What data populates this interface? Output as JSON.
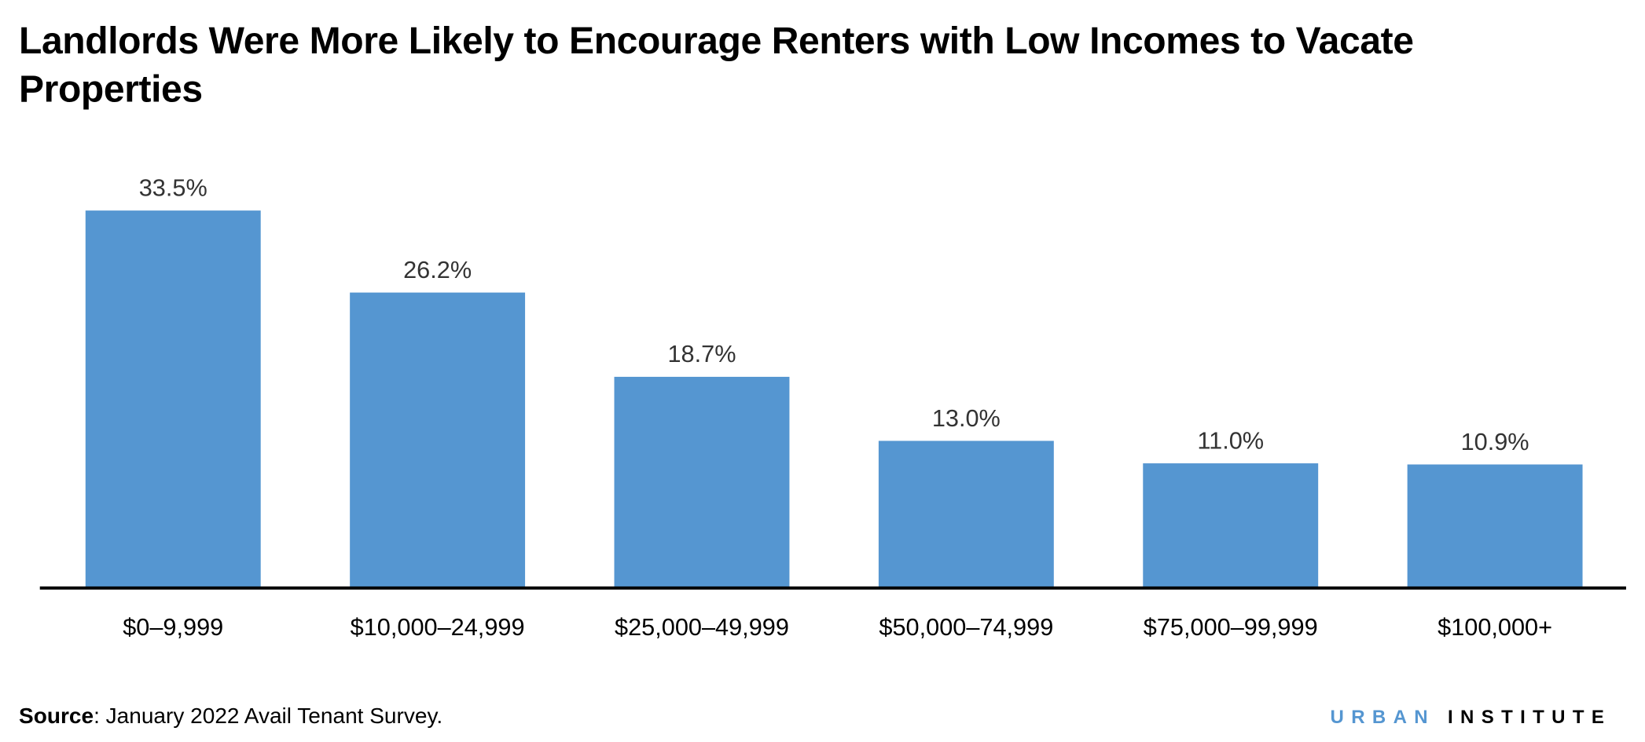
{
  "title": "Landlords Were More Likely to Encourage Renters with Low Incomes to Vacate Properties",
  "source_label": "Source",
  "source_text": ": January 2022 Avail Tenant Survey.",
  "logo": {
    "part1": "URBAN",
    "part2": "INSTITUTE"
  },
  "colors": {
    "bar": "#5596d1",
    "axis": "#000000",
    "label": "#333333",
    "logo_accent": "#5596d1"
  },
  "chart_data": {
    "type": "bar",
    "title": "Landlords Were More Likely to Encourage Renters with Low Incomes to Vacate Properties",
    "categories": [
      "$0–9,999",
      "$10,000–24,999",
      "$25,000–49,999",
      "$50,000–74,999",
      "$75,000–99,999",
      "$100,000+"
    ],
    "values": [
      33.5,
      26.2,
      18.7,
      13.0,
      11.0,
      10.9
    ],
    "value_labels": [
      "33.5%",
      "26.2%",
      "18.7%",
      "13.0%",
      "11.0%",
      "10.9%"
    ],
    "xlabel": "",
    "ylabel": "",
    "ylim": [
      0,
      35
    ],
    "grid": false,
    "legend": "none"
  }
}
